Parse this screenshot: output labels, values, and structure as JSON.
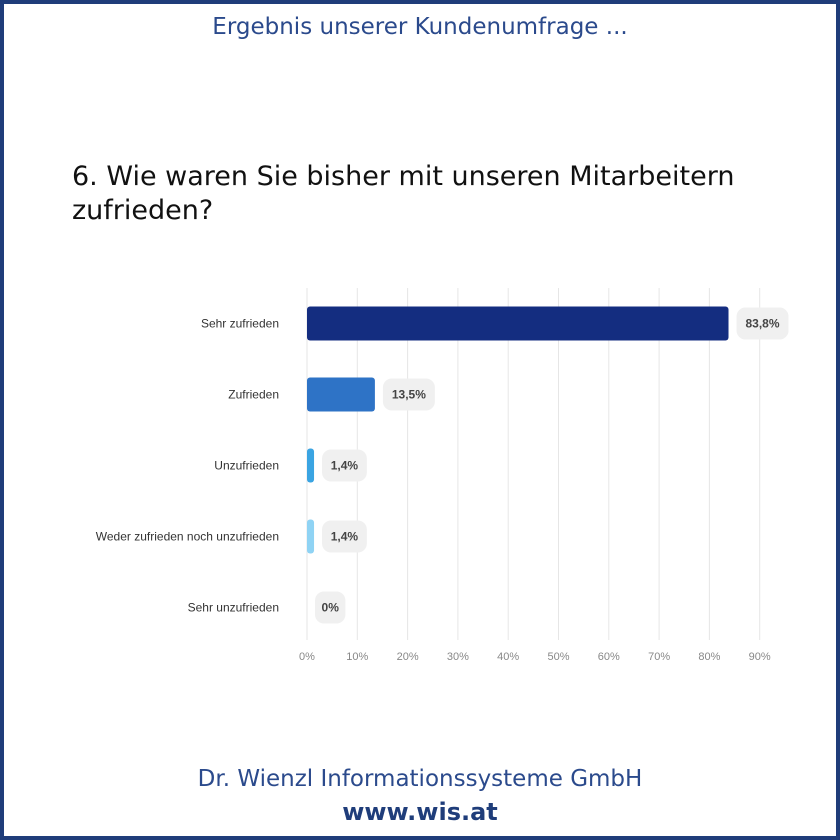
{
  "header": {
    "title": "Ergebnis unserer Kundenumfrage ..."
  },
  "question": "6. Wie waren Sie bisher mit unseren Mitarbeitern zufrieden?",
  "footer": {
    "company": "Dr. Wienzl Informationssysteme GmbH",
    "website": "www.wis.at"
  },
  "colors": {
    "frame": "#1f3d7a",
    "title": "#2b4a8c"
  },
  "chart_data": {
    "type": "bar",
    "orientation": "horizontal",
    "categories": [
      "Sehr zufrieden",
      "Zufrieden",
      "Unzufrieden",
      "Weder zufrieden noch unzufrieden",
      "Sehr unzufrieden"
    ],
    "values": [
      83.8,
      13.5,
      1.4,
      1.4,
      0
    ],
    "value_labels": [
      "83,8%",
      "13,5%",
      "1,4%",
      "1,4%",
      "0%"
    ],
    "bar_colors": [
      "#142d80",
      "#2e73c6",
      "#3aa4e2",
      "#8fd3f4",
      "#c8e8f8"
    ],
    "xticks": [
      0,
      10,
      20,
      30,
      40,
      50,
      60,
      70,
      80,
      90
    ],
    "xtick_labels": [
      "0%",
      "10%",
      "20%",
      "30%",
      "40%",
      "50%",
      "60%",
      "70%",
      "80%",
      "90%"
    ],
    "xlim": [
      0,
      90
    ],
    "grid": true
  }
}
